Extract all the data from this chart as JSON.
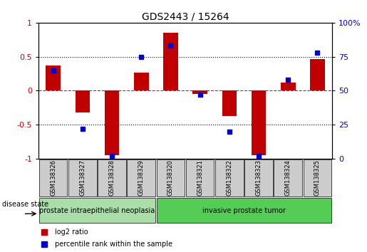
{
  "title": "GDS2443 / 15264",
  "samples": [
    "GSM138326",
    "GSM138327",
    "GSM138328",
    "GSM138329",
    "GSM138320",
    "GSM138321",
    "GSM138322",
    "GSM138323",
    "GSM138324",
    "GSM138325"
  ],
  "log2_ratio": [
    0.37,
    -0.32,
    -0.95,
    0.27,
    0.85,
    -0.05,
    -0.37,
    -0.95,
    0.12,
    0.47
  ],
  "percentile_rank": [
    65,
    22,
    2,
    75,
    83,
    47,
    20,
    2,
    58,
    78
  ],
  "bar_color": "#c00000",
  "dot_color": "#0000cc",
  "ylim_left": [
    -1,
    1
  ],
  "ylim_right": [
    0,
    100
  ],
  "yticks_left": [
    -1,
    -0.5,
    0,
    0.5,
    1
  ],
  "ytick_labels_left": [
    "-1",
    "-0.5",
    "0",
    "0.5",
    "1"
  ],
  "yticks_right": [
    0,
    25,
    50,
    75,
    100
  ],
  "ytick_labels_right": [
    "0",
    "25",
    "50",
    "75",
    "100%"
  ],
  "groups": [
    {
      "label": "prostate intraepithelial neoplasia",
      "start": 0,
      "end": 3,
      "color": "#aaddaa"
    },
    {
      "label": "invasive prostate tumor",
      "start": 4,
      "end": 9,
      "color": "#55cc55"
    }
  ],
  "disease_state_label": "disease state",
  "legend_bar_label": "log2 ratio",
  "legend_dot_label": "percentile rank within the sample",
  "background_color": "#ffffff",
  "plot_bg_color": "#ffffff",
  "tick_label_color_left": "#cc0000",
  "tick_label_color_right": "#0000cc",
  "sample_box_color": "#cccccc",
  "bar_width": 0.5
}
